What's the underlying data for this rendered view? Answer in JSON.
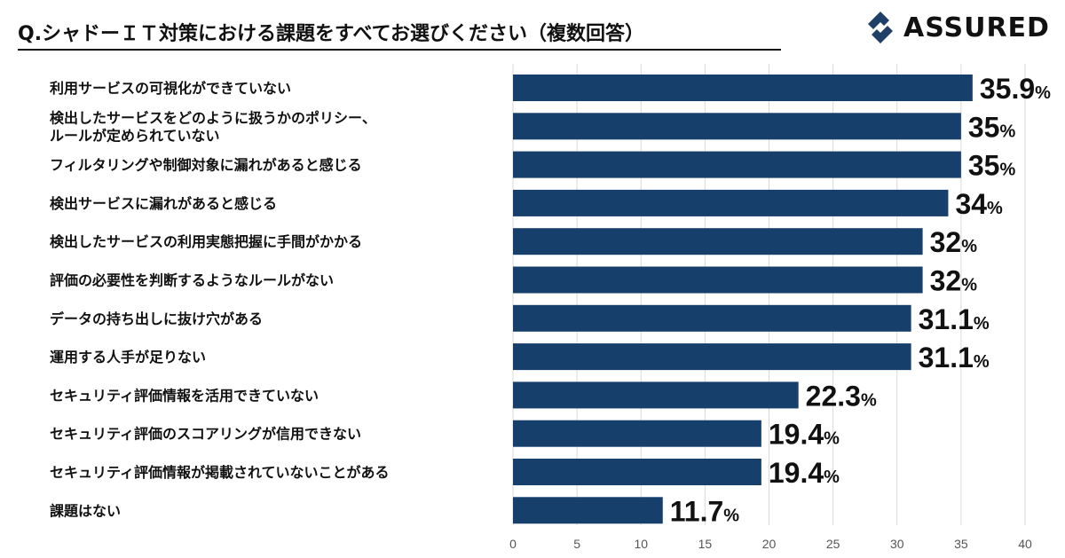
{
  "header": {
    "title": "Q.シャドーＩＴ対策における課題をすべてお選びください（複数回答）",
    "brand": "ASSURED"
  },
  "colors": {
    "bar": "#173f6b",
    "brand": "#1f3f66",
    "grid": "#d9d9d9",
    "text": "#111111"
  },
  "chart_data": {
    "type": "bar",
    "orientation": "horizontal",
    "title": "Q.シャドーＩＴ対策における課題をすべてお選びください（複数回答）",
    "categories": [
      [
        "利用サービスの可視化ができていない"
      ],
      [
        "検出したサービスをどのように扱うかのポリシー、",
        "ルールが定められていない"
      ],
      [
        "フィルタリングや制御対象に漏れがあると感じる"
      ],
      [
        "検出サービスに漏れがあると感じる"
      ],
      [
        "検出したサービスの利用実態把握に手間がかかる"
      ],
      [
        "評価の必要性を判断するようなルールがない"
      ],
      [
        "データの持ち出しに抜け穴がある"
      ],
      [
        "運用する人手が足りない"
      ],
      [
        "セキュリティ評価情報を活用できていない"
      ],
      [
        "セキュリティ評価のスコアリングが信用できない"
      ],
      [
        "セキュリティ評価情報が掲載されていないことがある"
      ],
      [
        "課題はない"
      ]
    ],
    "values": [
      35.9,
      35,
      35,
      34,
      32,
      32,
      31.1,
      31.1,
      22.3,
      19.4,
      19.4,
      11.7
    ],
    "value_labels": [
      "35.9",
      "35",
      "35",
      "34",
      "32",
      "32",
      "31.1",
      "31.1",
      "22.3",
      "19.4",
      "19.4",
      "11.7"
    ],
    "unit": "%",
    "xlim": [
      0,
      40
    ],
    "xticks": [
      0,
      5,
      10,
      15,
      20,
      25,
      30,
      35,
      40
    ],
    "grid": "vertical",
    "xlabel": "",
    "ylabel": ""
  }
}
